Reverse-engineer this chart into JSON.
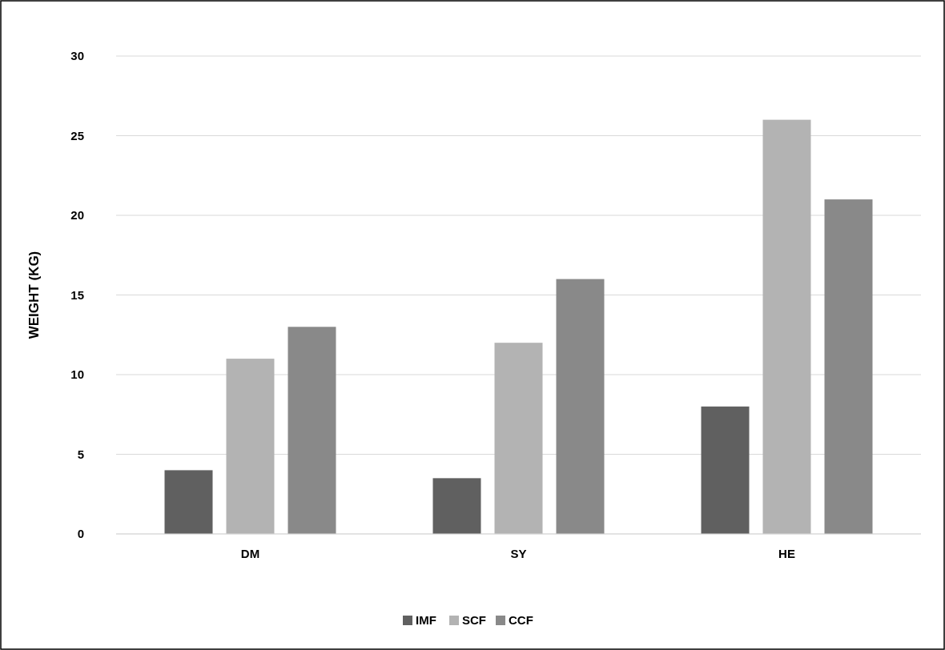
{
  "chart_data": {
    "type": "bar",
    "ylabel": "WEIGHT (KG)",
    "categories": [
      "DM",
      "SY",
      "HE"
    ],
    "series": [
      {
        "name": "IMF",
        "color": "#606060",
        "values": [
          4,
          3.5,
          8
        ]
      },
      {
        "name": "SCF",
        "color": "#b3b3b3",
        "values": [
          11,
          12,
          26
        ]
      },
      {
        "name": "CCF",
        "color": "#898989",
        "values": [
          13,
          16,
          21
        ]
      }
    ],
    "ylim": [
      0,
      30
    ],
    "yticks": [
      0,
      5,
      10,
      15,
      20,
      25,
      30
    ],
    "grid": "y",
    "legend": "bottom"
  }
}
